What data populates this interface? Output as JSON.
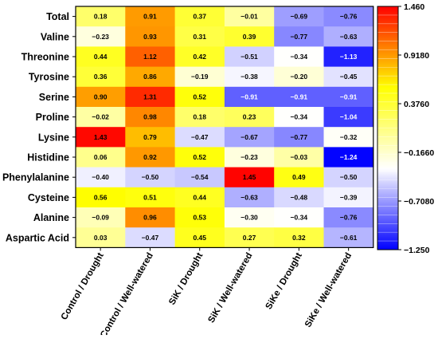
{
  "chart_data": {
    "type": "heatmap",
    "rows": [
      "Total",
      "Valine",
      "Threonine",
      "Tyrosine",
      "Serine",
      "Proline",
      "Lysine",
      "Histidine",
      "Phenylalanine",
      "Cysteine",
      "Alanine",
      "Aspartic Acid"
    ],
    "columns": [
      "Control / Drought",
      "Control / Well-watered",
      "SiK / Drought",
      "SiK / Well-watered",
      "SiKe / Drought",
      "SiKe / Well-watered"
    ],
    "values": [
      [
        0.18,
        0.91,
        0.37,
        -0.01,
        -0.69,
        -0.76
      ],
      [
        -0.23,
        0.93,
        0.31,
        0.39,
        -0.77,
        -0.63
      ],
      [
        0.44,
        1.12,
        0.42,
        -0.51,
        -0.34,
        -1.13
      ],
      [
        0.36,
        0.86,
        -0.19,
        -0.38,
        -0.2,
        -0.45
      ],
      [
        0.9,
        1.31,
        0.52,
        -0.91,
        -0.91,
        -0.91
      ],
      [
        -0.02,
        0.98,
        0.18,
        0.23,
        -0.34,
        -1.04
      ],
      [
        1.43,
        0.79,
        -0.47,
        -0.67,
        -0.77,
        -0.32
      ],
      [
        0.06,
        0.92,
        0.52,
        -0.23,
        -0.03,
        -1.24
      ],
      [
        -0.4,
        -0.5,
        -0.54,
        1.45,
        0.49,
        -0.5
      ],
      [
        0.56,
        0.51,
        0.44,
        -0.63,
        -0.48,
        -0.39
      ],
      [
        -0.09,
        0.96,
        0.53,
        -0.3,
        -0.34,
        -0.76
      ],
      [
        0.03,
        -0.47,
        0.45,
        0.27,
        0.32,
        -0.61
      ]
    ],
    "value_labels": [
      [
        "0.18",
        "0.91",
        "0.37",
        "−0.01",
        "−0.69",
        "−0.76"
      ],
      [
        "−0.23",
        "0.93",
        "0.31",
        "0.39",
        "−0.77",
        "−0.63"
      ],
      [
        "0.44",
        "1.12",
        "0.42",
        "−0.51",
        "−0.34",
        "−1.13"
      ],
      [
        "0.36",
        "0.86",
        "−0.19",
        "−0.38",
        "−0.20",
        "−0.45"
      ],
      [
        "0.90",
        "1.31",
        "0.52",
        "−0.91",
        "−0.91",
        "−0.91"
      ],
      [
        "−0.02",
        "0.98",
        "0.18",
        "0.23",
        "−0.34",
        "−1.04"
      ],
      [
        "1.43",
        "0.79",
        "−0.47",
        "−0.67",
        "−0.77",
        "−0.32"
      ],
      [
        "0.06",
        "0.92",
        "0.52",
        "−0.23",
        "−0.03",
        "−1.24"
      ],
      [
        "−0.40",
        "−0.50",
        "−0.54",
        "1.45",
        "0.49",
        "−0.50"
      ],
      [
        "0.56",
        "0.51",
        "0.44",
        "−0.63",
        "−0.48",
        "−0.39"
      ],
      [
        "−0.09",
        "0.96",
        "0.53",
        "−0.30",
        "−0.34",
        "−0.76"
      ],
      [
        "0.03",
        "−0.47",
        "0.45",
        "0.27",
        "0.32",
        "−0.61"
      ]
    ],
    "colorbar": {
      "min": -1.25,
      "max": 1.46,
      "ticks": [
        1.46,
        0.918,
        0.376,
        -0.166,
        -0.708,
        -1.25
      ],
      "tick_labels": [
        "1.460",
        "0.9180",
        "0.3760",
        "−0.1660",
        "−0.7080",
        "−1.250"
      ],
      "colors": [
        "#0000ff",
        "#ffffff",
        "#ffff00",
        "#ff0000"
      ]
    },
    "title": "",
    "xlabel": "",
    "ylabel": ""
  }
}
